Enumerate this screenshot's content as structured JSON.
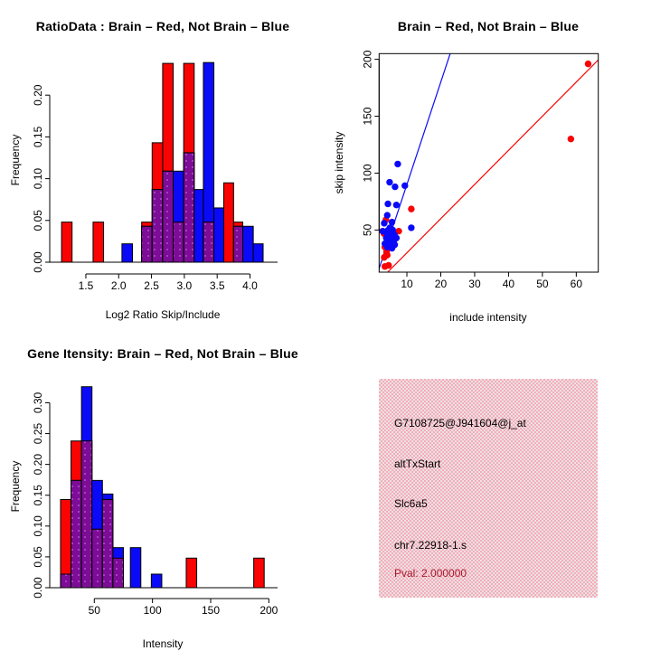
{
  "colors": {
    "red": "#f90303",
    "blue": "#0a0af8",
    "overlap_purple": "#7d0c96",
    "overlap_dot": "#b44fd0",
    "axis_black": "#000000",
    "pink_box_dot": "#f7abbc",
    "pink_box_bg": "#e9e3e1",
    "pval_red": "#a6192e"
  },
  "chart_data": [
    {
      "id": "ratio_hist",
      "type": "bar",
      "subtype": "overlaid-histogram",
      "title": "RatioData : Brain – Red, Not Brain – Blue",
      "xlabel": "Log2 Ratio Skip/Include",
      "ylabel": "Frequency",
      "xlim": [
        0.95,
        4.42
      ],
      "ylim": [
        0,
        0.2446
      ],
      "grid": false,
      "xticks": {
        "values": [
          1.5,
          2.0,
          2.5,
          3.0,
          3.5,
          4.0
        ],
        "labels": [
          "1.5",
          "2.0",
          "2.5",
          "3.0",
          "3.5",
          "4.0"
        ]
      },
      "yticks": {
        "values": [
          0,
          0.05,
          0.1,
          0.15,
          0.2
        ],
        "labels": [
          "0.00",
          "0.05",
          "0.10",
          "0.15",
          "0.20"
        ]
      },
      "legend": {
        "red": "Brain",
        "blue": "Not Brain"
      },
      "bars": [
        {
          "x0": 1.13,
          "x1": 1.29,
          "red": 0.048,
          "blue": 0
        },
        {
          "x0": 1.61,
          "x1": 1.77,
          "red": 0.048,
          "blue": 0
        },
        {
          "x0": 2.05,
          "x1": 2.21,
          "red": 0,
          "blue": 0.022
        },
        {
          "x0": 2.35,
          "x1": 2.51,
          "red": 0.048,
          "blue": 0.043
        },
        {
          "x0": 2.51,
          "x1": 2.67,
          "red": 0.143,
          "blue": 0.087
        },
        {
          "x0": 2.67,
          "x1": 2.83,
          "red": 0.238,
          "blue": 0.109
        },
        {
          "x0": 2.83,
          "x1": 2.99,
          "red": 0.048,
          "blue": 0.109
        },
        {
          "x0": 2.99,
          "x1": 3.15,
          "red": 0.238,
          "blue": 0.131
        },
        {
          "x0": 3.15,
          "x1": 3.29,
          "red": 0,
          "blue": 0.087
        },
        {
          "x0": 3.29,
          "x1": 3.45,
          "red": 0.048,
          "blue": 0.239
        },
        {
          "x0": 3.45,
          "x1": 3.6,
          "red": 0,
          "blue": 0.065
        },
        {
          "x0": 3.6,
          "x1": 3.75,
          "red": 0.095,
          "blue": 0
        },
        {
          "x0": 3.75,
          "x1": 3.89,
          "red": 0.048,
          "blue": 0.043
        },
        {
          "x0": 3.89,
          "x1": 4.05,
          "red": 0,
          "blue": 0.043
        },
        {
          "x0": 4.05,
          "x1": 4.2,
          "red": 0,
          "blue": 0.022
        }
      ]
    },
    {
      "id": "intensity_scatter",
      "type": "scatter",
      "title": "Brain – Red, Not Brain – Blue",
      "xlabel": "include intensity",
      "ylabel": "skip intensity",
      "xlim": [
        1.8,
        66.5
      ],
      "ylim": [
        13,
        205
      ],
      "grid": false,
      "frame": true,
      "xticks": {
        "values": [
          10,
          20,
          30,
          40,
          50,
          60
        ],
        "labels": [
          "10",
          "20",
          "30",
          "40",
          "50",
          "60"
        ]
      },
      "yticks": {
        "values": [
          50,
          100,
          150,
          200
        ],
        "labels": [
          "50",
          "100",
          "150",
          "200"
        ]
      },
      "lines": [
        {
          "color": "blue",
          "slope": 9,
          "intercept": 0
        },
        {
          "color": "red",
          "slope": 3,
          "intercept": 0
        }
      ],
      "series": [
        {
          "name": "Brain",
          "color": "red",
          "points": [
            [
              63.5,
              196
            ],
            [
              58.4,
              130
            ],
            [
              11.3,
              68.5
            ],
            [
              3.8,
              59
            ],
            [
              2.8,
              49
            ],
            [
              7.6,
              49
            ],
            [
              3.2,
              47
            ],
            [
              4.0,
              31
            ],
            [
              3.5,
              35
            ],
            [
              4.2,
              28
            ],
            [
              3.3,
              26
            ],
            [
              4.6,
              19
            ],
            [
              3.5,
              18
            ]
          ]
        },
        {
          "name": "Not Brain",
          "color": "blue",
          "points": [
            [
              7.3,
              108
            ],
            [
              4.9,
              92
            ],
            [
              6.5,
              88
            ],
            [
              9.4,
              89
            ],
            [
              4.4,
              73
            ],
            [
              6.9,
              72
            ],
            [
              4.2,
              63
            ],
            [
              3.3,
              56
            ],
            [
              5.6,
              57
            ],
            [
              11.3,
              52
            ],
            [
              2.9,
              49
            ],
            [
              5.1,
              47
            ],
            [
              6.3,
              46
            ],
            [
              3.9,
              43
            ],
            [
              6.9,
              43
            ],
            [
              4.6,
              39
            ],
            [
              5.9,
              38
            ],
            [
              3.5,
              38
            ],
            [
              4.2,
              35
            ],
            [
              5.6,
              34
            ],
            [
              4.8,
              44
            ],
            [
              5.3,
              42
            ],
            [
              4.5,
              50
            ],
            [
              5.8,
              50
            ],
            [
              5.2,
              36
            ],
            [
              4.9,
              41
            ],
            [
              6.1,
              40
            ],
            [
              5.4,
              45
            ],
            [
              4.1,
              47
            ],
            [
              6.4,
              37
            ],
            [
              5.0,
              52
            ],
            [
              4.3,
              44
            ]
          ]
        }
      ]
    },
    {
      "id": "gene_hist",
      "type": "bar",
      "subtype": "overlaid-histogram",
      "title": "Gene Itensity: Brain – Red, Not Brain – Blue",
      "xlabel": "Intensity",
      "ylabel": "Frequency",
      "xlim": [
        11.7,
        207.5
      ],
      "ylim": [
        0,
        0.33
      ],
      "grid": false,
      "xticks": {
        "values": [
          50,
          100,
          150,
          200
        ],
        "labels": [
          "50",
          "100",
          "150",
          "200"
        ]
      },
      "yticks": {
        "values": [
          0,
          0.05,
          0.1,
          0.15,
          0.2,
          0.25,
          0.3
        ],
        "labels": [
          "0.00",
          "0.05",
          "0.10",
          "0.15",
          "0.20",
          "0.25",
          "0.30"
        ]
      },
      "legend": {
        "red": "Brain",
        "blue": "Not Brain"
      },
      "bars": [
        {
          "x0": 21,
          "x1": 30,
          "red": 0.143,
          "blue": 0.022
        },
        {
          "x0": 30,
          "x1": 39,
          "red": 0.238,
          "blue": 0.174
        },
        {
          "x0": 39,
          "x1": 48,
          "red": 0.238,
          "blue": 0.326
        },
        {
          "x0": 48,
          "x1": 57,
          "red": 0.095,
          "blue": 0.174
        },
        {
          "x0": 57,
          "x1": 66,
          "red": 0.143,
          "blue": 0.152
        },
        {
          "x0": 66,
          "x1": 75,
          "red": 0.048,
          "blue": 0.065
        },
        {
          "x0": 81,
          "x1": 90,
          "red": 0,
          "blue": 0.065
        },
        {
          "x0": 99,
          "x1": 108,
          "red": 0,
          "blue": 0.022
        },
        {
          "x0": 129,
          "x1": 138,
          "red": 0.048,
          "blue": 0
        },
        {
          "x0": 187,
          "x1": 196,
          "red": 0.048,
          "blue": 0
        }
      ]
    },
    {
      "id": "info_box",
      "type": "table",
      "lines": [
        "G7108725@J941604@j_at",
        "altTxStart",
        "Slc6a5",
        "chr7.22918-1.s"
      ],
      "pval": "Pval: 2.000000"
    }
  ]
}
